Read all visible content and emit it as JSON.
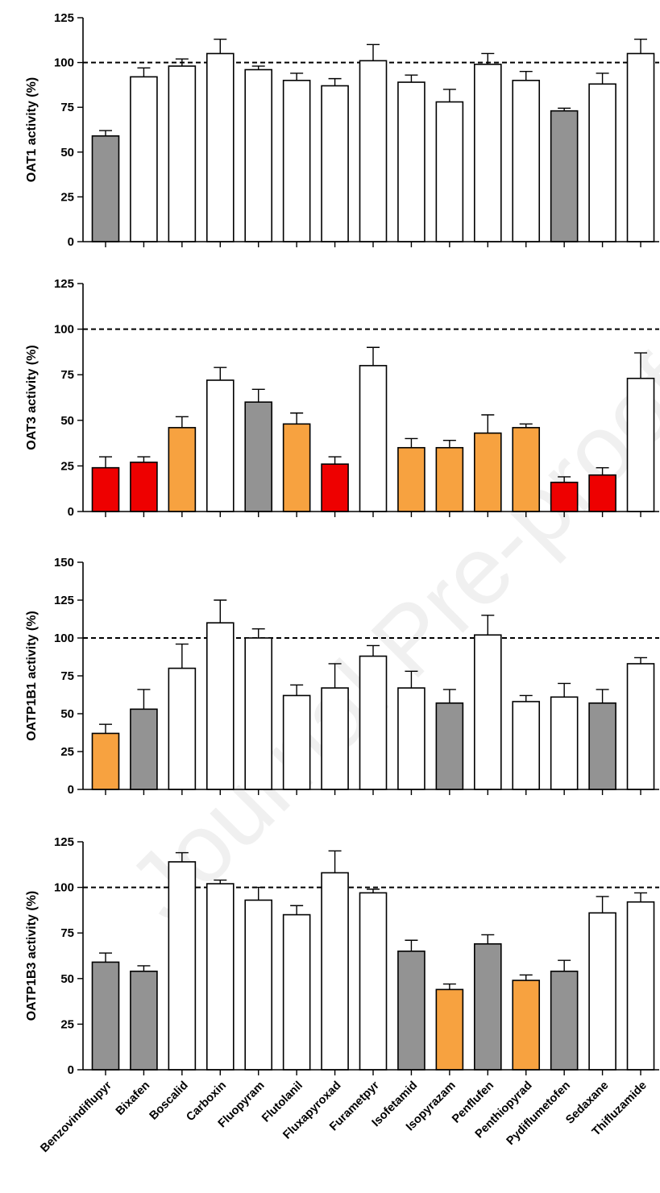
{
  "colors": {
    "gray": "#939393",
    "orange": "#f7a240",
    "red": "#ee0000",
    "white": "#ffffff",
    "axis": "#000000"
  },
  "watermark": "Journal Pre-proof",
  "chart_data": [
    {
      "type": "bar",
      "ylabel": "OAT1 activity (%)",
      "ylim": [
        0,
        125
      ],
      "yticks": [
        0,
        25,
        50,
        75,
        100,
        125
      ],
      "reference_line": 100,
      "categories": [
        "Benzovindiflupyr",
        "Bixafen",
        "Boscalid",
        "Carboxin",
        "Fluopyram",
        "Flutolanil",
        "Fluxapyroxad",
        "Furametpyr",
        "Isofetamid",
        "Isopyrazam",
        "Penflufen",
        "Penthiopyrad",
        "Pydiflumetofen",
        "Sedaxane",
        "Thifluzamide"
      ],
      "values": [
        59,
        92,
        98,
        105,
        96,
        90,
        87,
        101,
        89,
        78,
        99,
        90,
        73,
        88,
        105
      ],
      "errors": [
        3,
        5,
        4,
        8,
        2,
        4,
        4,
        9,
        4,
        7,
        6,
        5,
        1.5,
        6,
        8
      ],
      "fills": [
        "gray",
        "white",
        "white",
        "white",
        "white",
        "white",
        "white",
        "white",
        "white",
        "white",
        "white",
        "white",
        "gray",
        "white",
        "white"
      ]
    },
    {
      "type": "bar",
      "ylabel": "OAT3 activity (%)",
      "ylim": [
        0,
        125
      ],
      "yticks": [
        0,
        25,
        50,
        75,
        100,
        125
      ],
      "reference_line": 100,
      "categories": [
        "Benzovindiflupyr",
        "Bixafen",
        "Boscalid",
        "Carboxin",
        "Fluopyram",
        "Flutolanil",
        "Fluxapyroxad",
        "Furametpyr",
        "Isofetamid",
        "Isopyrazam",
        "Penflufen",
        "Penthiopyrad",
        "Pydiflumetofen",
        "Sedaxane",
        "Thifluzamide"
      ],
      "values": [
        24,
        27,
        46,
        72,
        60,
        48,
        26,
        80,
        35,
        35,
        43,
        46,
        16,
        20,
        73
      ],
      "errors": [
        6,
        3,
        6,
        7,
        7,
        6,
        4,
        10,
        5,
        4,
        10,
        2,
        3,
        4,
        14
      ],
      "fills": [
        "red",
        "red",
        "orange",
        "white",
        "gray",
        "orange",
        "red",
        "white",
        "orange",
        "orange",
        "orange",
        "orange",
        "red",
        "red",
        "white"
      ]
    },
    {
      "type": "bar",
      "ylabel": "OATP1B1 activity (%)",
      "ylim": [
        0,
        150
      ],
      "yticks": [
        0,
        25,
        50,
        75,
        100,
        125,
        150
      ],
      "reference_line": 100,
      "categories": [
        "Benzovindiflupyr",
        "Bixafen",
        "Boscalid",
        "Carboxin",
        "Fluopyram",
        "Flutolanil",
        "Fluxapyroxad",
        "Furametpyr",
        "Isofetamid",
        "Isopyrazam",
        "Penflufen",
        "Penthiopyrad",
        "Pydiflumetofen",
        "Sedaxane",
        "Thifluzamide"
      ],
      "values": [
        37,
        53,
        80,
        110,
        100,
        62,
        67,
        88,
        67,
        57,
        102,
        58,
        61,
        57,
        83
      ],
      "errors": [
        6,
        13,
        16,
        15,
        6,
        7,
        16,
        7,
        11,
        9,
        13,
        4,
        9,
        9,
        4
      ],
      "fills": [
        "orange",
        "gray",
        "white",
        "white",
        "white",
        "white",
        "white",
        "white",
        "white",
        "gray",
        "white",
        "white",
        "white",
        "gray",
        "white"
      ]
    },
    {
      "type": "bar",
      "ylabel": "OATP1B3 activity (%)",
      "ylim": [
        0,
        125
      ],
      "yticks": [
        0,
        25,
        50,
        75,
        100,
        125
      ],
      "reference_line": 100,
      "categories": [
        "Benzovindiflupyr",
        "Bixafen",
        "Boscalid",
        "Carboxin",
        "Fluopyram",
        "Flutolanil",
        "Fluxapyroxad",
        "Furametpyr",
        "Isofetamid",
        "Isopyrazam",
        "Penflufen",
        "Penthiopyrad",
        "Pydiflumetofen",
        "Sedaxane",
        "Thifluzamide"
      ],
      "values": [
        59,
        54,
        114,
        102,
        93,
        85,
        108,
        97,
        65,
        44,
        69,
        49,
        54,
        86,
        92
      ],
      "errors": [
        5,
        3,
        5,
        2,
        7,
        5,
        12,
        2,
        6,
        3,
        5,
        3,
        6,
        9,
        5
      ],
      "fills": [
        "gray",
        "gray",
        "white",
        "white",
        "white",
        "white",
        "white",
        "white",
        "gray",
        "orange",
        "gray",
        "orange",
        "gray",
        "white",
        "white"
      ]
    }
  ]
}
